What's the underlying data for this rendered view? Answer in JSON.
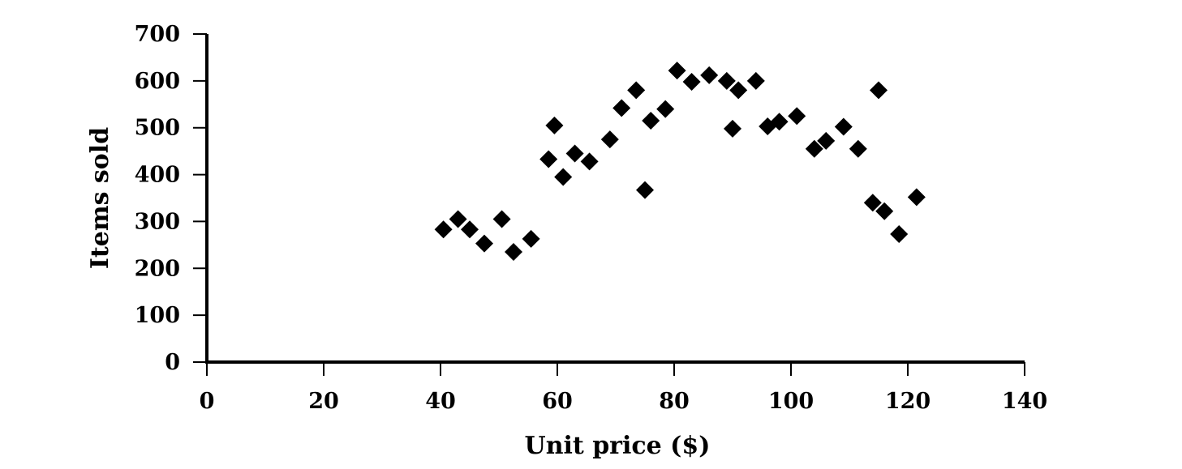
{
  "chart_data": {
    "type": "scatter",
    "title": "",
    "xlabel": "Unit price ($)",
    "ylabel": "Items sold",
    "xlim": [
      0,
      140
    ],
    "ylim": [
      0,
      700
    ],
    "x_ticks": [
      "0",
      "20",
      "40",
      "60",
      "80",
      "100",
      "120",
      "140"
    ],
    "y_ticks": [
      "0",
      "100",
      "200",
      "300",
      "400",
      "500",
      "600",
      "700"
    ],
    "grid": false,
    "marker": "diamond",
    "marker_color": "#000000",
    "points": [
      {
        "x": 40.5,
        "y": 283
      },
      {
        "x": 43,
        "y": 305
      },
      {
        "x": 45,
        "y": 283
      },
      {
        "x": 47.5,
        "y": 253
      },
      {
        "x": 50.5,
        "y": 305
      },
      {
        "x": 52.5,
        "y": 235
      },
      {
        "x": 55.5,
        "y": 263
      },
      {
        "x": 58.5,
        "y": 433
      },
      {
        "x": 59.5,
        "y": 505
      },
      {
        "x": 61,
        "y": 395
      },
      {
        "x": 63,
        "y": 445
      },
      {
        "x": 65.5,
        "y": 428
      },
      {
        "x": 69,
        "y": 475
      },
      {
        "x": 71,
        "y": 542
      },
      {
        "x": 73.5,
        "y": 580
      },
      {
        "x": 75,
        "y": 367
      },
      {
        "x": 76,
        "y": 515
      },
      {
        "x": 78.5,
        "y": 540
      },
      {
        "x": 80.5,
        "y": 622
      },
      {
        "x": 83,
        "y": 598
      },
      {
        "x": 86,
        "y": 612
      },
      {
        "x": 89,
        "y": 600
      },
      {
        "x": 90,
        "y": 498
      },
      {
        "x": 91,
        "y": 580
      },
      {
        "x": 94,
        "y": 600
      },
      {
        "x": 96,
        "y": 503
      },
      {
        "x": 98,
        "y": 513
      },
      {
        "x": 101,
        "y": 525
      },
      {
        "x": 104,
        "y": 455
      },
      {
        "x": 106,
        "y": 472
      },
      {
        "x": 109,
        "y": 502
      },
      {
        "x": 111.5,
        "y": 455
      },
      {
        "x": 114,
        "y": 340
      },
      {
        "x": 115,
        "y": 580
      },
      {
        "x": 116,
        "y": 322
      },
      {
        "x": 118.5,
        "y": 273
      },
      {
        "x": 121.5,
        "y": 352
      }
    ]
  }
}
